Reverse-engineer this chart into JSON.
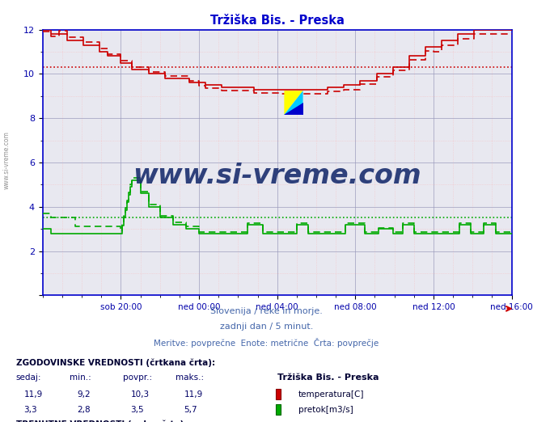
{
  "title": "Tržiška Bis. - Preska",
  "title_color": "#0000cc",
  "bg_color": "#ffffff",
  "plot_bg_color": "#e8e8f0",
  "grid_color_major": "#9999bb",
  "xlim": [
    0,
    288
  ],
  "ylim": [
    0,
    12
  ],
  "yticks": [
    0,
    2,
    4,
    6,
    8,
    10,
    12
  ],
  "xtick_labels": [
    "sob 20:00",
    "ned 00:00",
    "ned 04:00",
    "ned 08:00",
    "ned 12:00",
    "ned 16:00"
  ],
  "xtick_positions": [
    48,
    96,
    144,
    192,
    240,
    288
  ],
  "subtitle1": "Slovenija / reke in morje.",
  "subtitle2": "zadnji dan / 5 minut.",
  "subtitle3": "Meritve: povprečne  Enote: metrične  Črta: povprečje",
  "subtitle_color": "#4466aa",
  "watermark_text": "www.si-vreme.com",
  "watermark_color": "#1a2e6e",
  "temp_color": "#cc0000",
  "flow_color": "#00aa00",
  "temp_avg": 10.3,
  "flow_avg": 3.5,
  "axis_color": "#0000cc",
  "tick_color": "#0000aa",
  "figsize": [
    6.59,
    5.22
  ],
  "dpi": 100
}
